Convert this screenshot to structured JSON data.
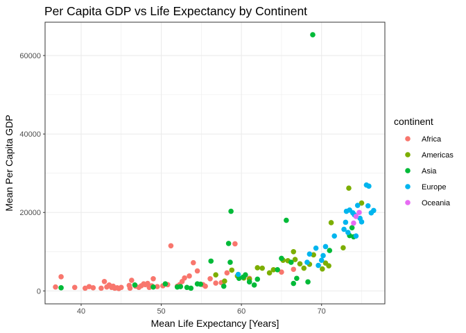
{
  "chart_data": {
    "type": "scatter",
    "title": "Per Capita GDP vs Life Expectancy by Continent",
    "xlabel": "Mean Life Expectancy [Years]",
    "ylabel": "Mean Per Capita GDP",
    "xlim": [
      35.5,
      77.9
    ],
    "ylim": [
      -3300,
      68500
    ],
    "x_ticks": [
      40,
      50,
      60,
      70
    ],
    "x_tick_labels": [
      "40",
      "50",
      "60",
      "70"
    ],
    "y_ticks": [
      0,
      20000,
      40000,
      60000
    ],
    "y_tick_labels": [
      "0",
      "20000",
      "40000",
      "60000"
    ],
    "grid": true,
    "legend": {
      "title": "continent",
      "position": "right"
    },
    "series": [
      {
        "name": "Africa",
        "color": "#F8766D",
        "points": [
          [
            37.5,
            3600
          ],
          [
            36.8,
            1000
          ],
          [
            39.2,
            900
          ],
          [
            40.5,
            700
          ],
          [
            41.0,
            1100
          ],
          [
            41.5,
            800
          ],
          [
            42.5,
            700
          ],
          [
            42.9,
            2400
          ],
          [
            43.2,
            1000
          ],
          [
            43.5,
            1500
          ],
          [
            43.8,
            900
          ],
          [
            44.0,
            1200
          ],
          [
            44.2,
            700
          ],
          [
            44.5,
            800
          ],
          [
            44.7,
            600
          ],
          [
            45.0,
            900
          ],
          [
            46.0,
            1400
          ],
          [
            46.1,
            700
          ],
          [
            46.3,
            2700
          ],
          [
            46.8,
            1200
          ],
          [
            47.2,
            900
          ],
          [
            47.5,
            1300
          ],
          [
            47.8,
            1800
          ],
          [
            48.0,
            1600
          ],
          [
            48.3,
            1900
          ],
          [
            48.5,
            900
          ],
          [
            48.8,
            1300
          ],
          [
            49.0,
            3100
          ],
          [
            49.5,
            1100
          ],
          [
            50.2,
            1300
          ],
          [
            50.8,
            1600
          ],
          [
            51.2,
            11500
          ],
          [
            52.0,
            1200
          ],
          [
            52.3,
            1600
          ],
          [
            52.6,
            2400
          ],
          [
            52.9,
            3300
          ],
          [
            53.5,
            3800
          ],
          [
            54.0,
            7200
          ],
          [
            54.5,
            5100
          ],
          [
            55.2,
            1600
          ],
          [
            55.5,
            1200
          ],
          [
            56.1,
            3100
          ],
          [
            56.8,
            2000
          ],
          [
            57.5,
            2100
          ],
          [
            58.2,
            4600
          ],
          [
            59.2,
            12000
          ],
          [
            61.0,
            3200
          ],
          [
            65.0,
            4800
          ],
          [
            66.5,
            5500
          ]
        ]
      },
      {
        "name": "Americas",
        "color": "#7CAE00",
        "points": [
          [
            56.8,
            4100
          ],
          [
            57.9,
            2500
          ],
          [
            58.8,
            5300
          ],
          [
            59.5,
            3800
          ],
          [
            60.3,
            3300
          ],
          [
            61.0,
            3000
          ],
          [
            62.0,
            5900
          ],
          [
            62.6,
            5800
          ],
          [
            63.5,
            4600
          ],
          [
            64.0,
            5400
          ],
          [
            65.2,
            7800
          ],
          [
            65.8,
            7700
          ],
          [
            66.5,
            10000
          ],
          [
            66.7,
            8000
          ],
          [
            67.3,
            6900
          ],
          [
            67.8,
            5800
          ],
          [
            68.5,
            6800
          ],
          [
            69.0,
            9200
          ],
          [
            70.1,
            5600
          ],
          [
            70.5,
            7100
          ],
          [
            70.9,
            6400
          ],
          [
            71.2,
            17400
          ],
          [
            72.7,
            11000
          ],
          [
            73.4,
            26200
          ],
          [
            75.0,
            22400
          ]
        ]
      },
      {
        "name": "Asia",
        "color": "#00BA38",
        "points": [
          [
            37.5,
            800
          ],
          [
            46.7,
            1500
          ],
          [
            49.0,
            1000
          ],
          [
            50.5,
            1800
          ],
          [
            52.0,
            1000
          ],
          [
            52.4,
            1100
          ],
          [
            53.2,
            900
          ],
          [
            53.7,
            700
          ],
          [
            54.5,
            1800
          ],
          [
            54.9,
            1700
          ],
          [
            56.2,
            7600
          ],
          [
            57.8,
            1200
          ],
          [
            58.4,
            12100
          ],
          [
            58.6,
            7300
          ],
          [
            58.7,
            20300
          ],
          [
            59.7,
            3200
          ],
          [
            60.2,
            3500
          ],
          [
            60.5,
            4100
          ],
          [
            61.0,
            2300
          ],
          [
            61.6,
            1500
          ],
          [
            62.0,
            3000
          ],
          [
            64.5,
            5400
          ],
          [
            65.0,
            8300
          ],
          [
            65.6,
            18000
          ],
          [
            66.2,
            7300
          ],
          [
            66.5,
            1900
          ],
          [
            66.9,
            3200
          ],
          [
            68.3,
            2300
          ],
          [
            68.9,
            65300
          ],
          [
            71.0,
            10300
          ],
          [
            73.5,
            14100
          ],
          [
            73.8,
            16100
          ],
          [
            74.0,
            13800
          ]
        ]
      },
      {
        "name": "Europe",
        "color": "#00B5EE",
        "points": [
          [
            59.6,
            4200
          ],
          [
            68.2,
            7300
          ],
          [
            68.5,
            9400
          ],
          [
            69.3,
            10900
          ],
          [
            69.6,
            6500
          ],
          [
            70.0,
            7800
          ],
          [
            70.2,
            9000
          ],
          [
            70.5,
            11300
          ],
          [
            71.6,
            14000
          ],
          [
            72.8,
            15700
          ],
          [
            73.0,
            17500
          ],
          [
            73.1,
            20300
          ],
          [
            73.3,
            14900
          ],
          [
            73.5,
            20600
          ],
          [
            73.9,
            19900
          ],
          [
            74.1,
            19400
          ],
          [
            74.3,
            14000
          ],
          [
            74.5,
            21800
          ],
          [
            74.8,
            18500
          ],
          [
            75.0,
            17600
          ],
          [
            75.6,
            27000
          ],
          [
            75.9,
            26700
          ],
          [
            75.8,
            21700
          ],
          [
            76.2,
            19900
          ],
          [
            76.5,
            20500
          ]
        ]
      },
      {
        "name": "Oceania",
        "color": "#E76BF3",
        "points": [
          [
            74.0,
            17300
          ],
          [
            74.3,
            19000
          ],
          [
            74.7,
            20000
          ]
        ]
      }
    ]
  }
}
